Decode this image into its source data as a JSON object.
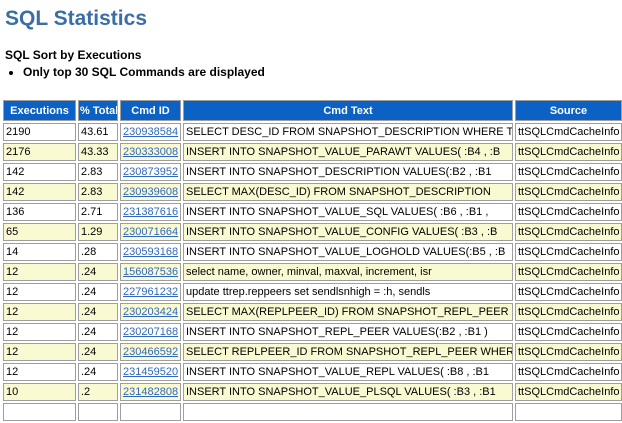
{
  "page": {
    "title": "SQL Statistics",
    "subtitle": "SQL Sort by Executions",
    "note": "Only top 30 SQL Commands are displayed"
  },
  "colors": {
    "title_text": "#3a6ea5",
    "table_header_bg": "#0b61c4",
    "table_header_text": "#ffffff",
    "link": "#2e68c0",
    "row_alt_bg": "#fafad2",
    "cell_border": "#9e9e9e"
  },
  "table": {
    "columns": [
      "Executions",
      "% Total",
      "Cmd ID",
      "Cmd Text",
      "Source"
    ],
    "rows": [
      {
        "executions": "2190",
        "pct_total": "43.61",
        "cmd_id": "230938584",
        "cmd_text": "SELECT DESC_ID FROM SNAPSHOT_DESCRIPTION WHERE TRI",
        "source": "ttSQLCmdCacheInfo"
      },
      {
        "executions": "2176",
        "pct_total": "43.33",
        "cmd_id": "230333008",
        "cmd_text": "INSERT INTO SNAPSHOT_VALUE_PARAWT VALUES( :B4 , :B",
        "source": "ttSQLCmdCacheInfo"
      },
      {
        "executions": "142",
        "pct_total": "2.83",
        "cmd_id": "230873952",
        "cmd_text": "INSERT INTO SNAPSHOT_DESCRIPTION VALUES(:B2 , :B1",
        "source": "ttSQLCmdCacheInfo"
      },
      {
        "executions": "142",
        "pct_total": "2.83",
        "cmd_id": "230939608",
        "cmd_text": "SELECT MAX(DESC_ID) FROM SNAPSHOT_DESCRIPTION",
        "source": "ttSQLCmdCacheInfo"
      },
      {
        "executions": "136",
        "pct_total": "2.71",
        "cmd_id": "231387616",
        "cmd_text": "INSERT INTO SNAPSHOT_VALUE_SQL VALUES( :B6 , :B1 ,",
        "source": "ttSQLCmdCacheInfo"
      },
      {
        "executions": "65",
        "pct_total": "1.29",
        "cmd_id": "230071664",
        "cmd_text": "INSERT INTO SNAPSHOT_VALUE_CONFIG VALUES( :B3 , :B",
        "source": "ttSQLCmdCacheInfo"
      },
      {
        "executions": "14",
        "pct_total": ".28",
        "cmd_id": "230593168",
        "cmd_text": "INSERT INTO SNAPSHOT_VALUE_LOGHOLD VALUES(:B5 , :B",
        "source": "ttSQLCmdCacheInfo"
      },
      {
        "executions": "12",
        "pct_total": ".24",
        "cmd_id": "156087536",
        "cmd_text": "select name, owner, minval, maxval, increment, isr",
        "source": "ttSQLCmdCacheInfo"
      },
      {
        "executions": "12",
        "pct_total": ".24",
        "cmd_id": "227961232",
        "cmd_text": "update ttrep.reppeers set sendlsnhigh = :h, sendls",
        "source": "ttSQLCmdCacheInfo"
      },
      {
        "executions": "12",
        "pct_total": ".24",
        "cmd_id": "230203424",
        "cmd_text": "SELECT MAX(REPLPEER_ID) FROM SNAPSHOT_REPL_PEER",
        "source": "ttSQLCmdCacheInfo"
      },
      {
        "executions": "12",
        "pct_total": ".24",
        "cmd_id": "230207168",
        "cmd_text": "INSERT INTO SNAPSHOT_REPL_PEER VALUES(:B2 , :B1 )",
        "source": "ttSQLCmdCacheInfo"
      },
      {
        "executions": "12",
        "pct_total": ".24",
        "cmd_id": "230466592",
        "cmd_text": "SELECT REPLPEER_ID FROM SNAPSHOT_REPL_PEER WHERE R",
        "source": "ttSQLCmdCacheInfo"
      },
      {
        "executions": "12",
        "pct_total": ".24",
        "cmd_id": "231459520",
        "cmd_text": "INSERT INTO SNAPSHOT_VALUE_REPL VALUES( :B8 , :B1",
        "source": "ttSQLCmdCacheInfo"
      },
      {
        "executions": "10",
        "pct_total": ".2",
        "cmd_id": "231482808",
        "cmd_text": "INSERT INTO SNAPSHOT_VALUE_PLSQL VALUES( :B3 , :B1",
        "source": "ttSQLCmdCacheInfo"
      }
    ]
  }
}
